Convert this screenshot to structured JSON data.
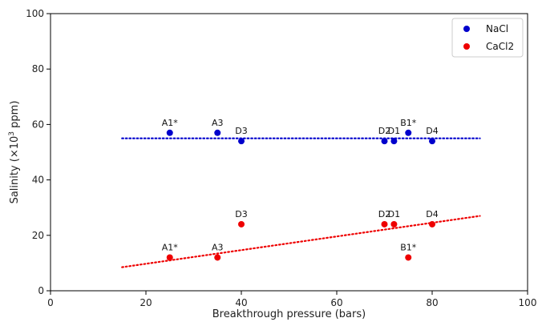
{
  "chart_data": {
    "type": "scatter",
    "xlabel": "Breakthrough pressure (bars)",
    "ylabel_prefix": "Salinity (×10",
    "ylabel_exp": "3",
    "ylabel_suffix": " ppm)",
    "xlim": [
      0,
      100
    ],
    "ylim": [
      0,
      100
    ],
    "xticks": [
      0,
      20,
      40,
      60,
      80,
      100
    ],
    "yticks": [
      0,
      20,
      40,
      60,
      80,
      100
    ],
    "grid": false,
    "legend_position": "top-right",
    "series": [
      {
        "name": "NaCl",
        "color": "#0000cc",
        "points": [
          {
            "x": 25,
            "y": 57,
            "label": "A1*"
          },
          {
            "x": 35,
            "y": 57,
            "label": "A3"
          },
          {
            "x": 40,
            "y": 54,
            "label": "D3"
          },
          {
            "x": 70,
            "y": 54,
            "label": "D2"
          },
          {
            "x": 72,
            "y": 54,
            "label": "D1"
          },
          {
            "x": 75,
            "y": 57,
            "label": "B1*"
          },
          {
            "x": 80,
            "y": 54,
            "label": "D4"
          }
        ],
        "trendline": {
          "x": [
            15,
            90
          ],
          "y": [
            55,
            55
          ],
          "style": "dotted"
        }
      },
      {
        "name": "CaCl2",
        "color": "#ee0000",
        "points": [
          {
            "x": 25,
            "y": 12,
            "label": "A1*"
          },
          {
            "x": 35,
            "y": 12,
            "label": "A3"
          },
          {
            "x": 40,
            "y": 24,
            "label": "D3"
          },
          {
            "x": 70,
            "y": 24,
            "label": "D2"
          },
          {
            "x": 72,
            "y": 24,
            "label": "D1"
          },
          {
            "x": 75,
            "y": 12,
            "label": "B1*"
          },
          {
            "x": 80,
            "y": 24,
            "label": "D4"
          }
        ],
        "trendline": {
          "x": [
            15,
            90
          ],
          "y": [
            8.5,
            27
          ],
          "style": "dotted"
        }
      }
    ]
  }
}
